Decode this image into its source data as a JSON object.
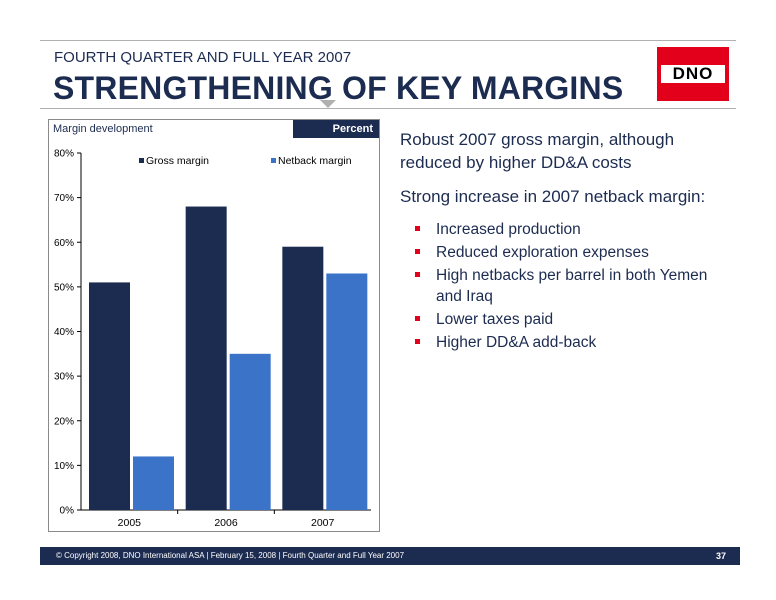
{
  "header": {
    "subtitle": "FOURTH QUARTER AND FULL YEAR 2007",
    "title": "STRENGTHENING OF KEY MARGINS",
    "logo_text": "DNO"
  },
  "colors": {
    "navy": "#1c2b50",
    "blue": "#3b73c9",
    "red": "#e2001a"
  },
  "chart_panel": {
    "label": "Margin development",
    "unit": "Percent"
  },
  "chart_data": {
    "type": "bar",
    "categories": [
      "2005",
      "2006",
      "2007"
    ],
    "series": [
      {
        "name": "Gross margin",
        "values": [
          51,
          68,
          59
        ],
        "color": "#1c2b50"
      },
      {
        "name": "Netback margin",
        "values": [
          12,
          35,
          53
        ],
        "color": "#3b73c9"
      }
    ],
    "yticks": [
      "0%",
      "10%",
      "20%",
      "30%",
      "40%",
      "50%",
      "60%",
      "70%",
      "80%"
    ],
    "ylim": [
      0,
      80
    ],
    "legend_position": "top",
    "grid": false
  },
  "bullets": [
    {
      "text": "Robust 2007 gross margin, although reduced by higher DD&A costs",
      "sub": []
    },
    {
      "text": "Strong increase in 2007 netback margin:",
      "sub": [
        "Increased production",
        "Reduced exploration expenses",
        "High netbacks per barrel in both Yemen and Iraq",
        "Lower taxes paid",
        "Higher DD&A add-back"
      ]
    }
  ],
  "footer": {
    "text": "© Copyright 2008, DNO International ASA | February 15, 2008 | Fourth Quarter and Full Year 2007",
    "page": "37"
  }
}
